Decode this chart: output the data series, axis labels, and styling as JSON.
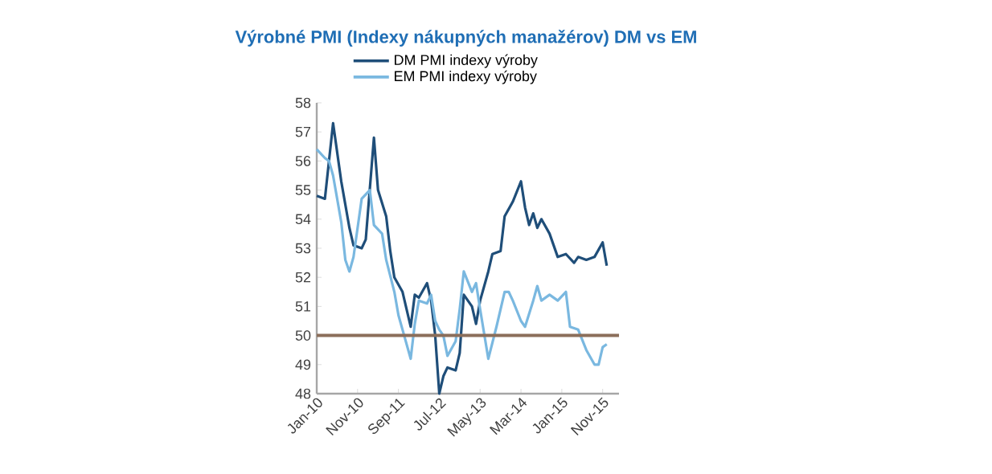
{
  "chart_data": {
    "type": "line",
    "title": "Výrobné PMI (Indexy nákupných manažérov) DM vs EM",
    "series": [
      {
        "name": "DM PMI indexy výroby",
        "color": "#1f4e79",
        "x": [
          "2010-01",
          "2010-03",
          "2010-05",
          "2010-07",
          "2010-09",
          "2010-10",
          "2010-12",
          "2011-01",
          "2011-03",
          "2011-04",
          "2011-06",
          "2011-07",
          "2011-08",
          "2011-10",
          "2011-11",
          "2011-12",
          "2012-01",
          "2012-02",
          "2012-04",
          "2012-05",
          "2012-06",
          "2012-07",
          "2012-08",
          "2012-09",
          "2012-11",
          "2012-12",
          "2013-01",
          "2013-03",
          "2013-04",
          "2013-05",
          "2013-07",
          "2013-08",
          "2013-10",
          "2013-11",
          "2014-01",
          "2014-03",
          "2014-04",
          "2014-05",
          "2014-06",
          "2014-07",
          "2014-08",
          "2014-10",
          "2014-12",
          "2015-02",
          "2015-04",
          "2015-05",
          "2015-07",
          "2015-09",
          "2015-11",
          "2015-12"
        ],
        "values": [
          54.8,
          54.7,
          57.3,
          55.3,
          53.7,
          53.1,
          53.0,
          53.3,
          56.8,
          55.0,
          54.1,
          52.9,
          52.0,
          51.5,
          50.9,
          50.3,
          51.4,
          51.3,
          51.8,
          51.2,
          50.0,
          48.0,
          48.6,
          48.9,
          48.8,
          49.4,
          51.4,
          51.0,
          50.4,
          51.2,
          52.2,
          52.8,
          52.9,
          54.1,
          54.6,
          55.3,
          54.4,
          53.8,
          54.2,
          53.7,
          54.0,
          53.5,
          52.7,
          52.8,
          52.5,
          52.7,
          52.6,
          52.7,
          53.2,
          52.4
        ]
      },
      {
        "name": "EM PMI indexy výroby",
        "color": "#7ab8e0",
        "x": [
          "2010-01",
          "2010-03",
          "2010-04",
          "2010-05",
          "2010-07",
          "2010-08",
          "2010-09",
          "2010-10",
          "2010-12",
          "2011-02",
          "2011-03",
          "2011-05",
          "2011-06",
          "2011-08",
          "2011-09",
          "2011-10",
          "2011-12",
          "2012-01",
          "2012-02",
          "2012-04",
          "2012-05",
          "2012-06",
          "2012-07",
          "2012-08",
          "2012-09",
          "2012-11",
          "2012-12",
          "2013-01",
          "2013-03",
          "2013-04",
          "2013-05",
          "2013-07",
          "2013-09",
          "2013-11",
          "2013-12",
          "2014-01",
          "2014-03",
          "2014-04",
          "2014-06",
          "2014-07",
          "2014-08",
          "2014-10",
          "2014-12",
          "2015-02",
          "2015-03",
          "2015-05",
          "2015-07",
          "2015-09",
          "2015-10",
          "2015-11",
          "2015-12"
        ],
        "values": [
          56.4,
          56.1,
          56.0,
          55.5,
          53.9,
          52.6,
          52.2,
          52.7,
          54.7,
          55.0,
          53.8,
          53.5,
          52.6,
          51.5,
          50.7,
          50.2,
          49.2,
          50.4,
          51.2,
          51.1,
          51.4,
          50.5,
          50.2,
          50.0,
          49.3,
          49.8,
          50.9,
          52.2,
          51.5,
          51.8,
          50.9,
          49.2,
          50.3,
          51.5,
          51.5,
          51.2,
          50.5,
          50.3,
          51.2,
          51.7,
          51.2,
          51.4,
          51.2,
          51.5,
          50.3,
          50.2,
          49.5,
          49.0,
          49.0,
          49.6,
          49.7
        ]
      }
    ],
    "ref_lines": [
      {
        "axis": "y",
        "value": 50,
        "color": "#8b6e5a"
      }
    ],
    "xlim": [
      "2010-01",
      "2016-03"
    ],
    "xticks": [
      {
        "value": "2010-01",
        "label": "Jan-10"
      },
      {
        "value": "2010-11",
        "label": "Nov-10"
      },
      {
        "value": "2011-09",
        "label": "Sep-11"
      },
      {
        "value": "2012-07",
        "label": "Jul-12"
      },
      {
        "value": "2013-05",
        "label": "May-13"
      },
      {
        "value": "2014-03",
        "label": "Mar-14"
      },
      {
        "value": "2015-01",
        "label": "Jan-15"
      },
      {
        "value": "2015-11",
        "label": "Nov-15"
      }
    ],
    "ylim": [
      48,
      58
    ],
    "yticks": [
      48,
      49,
      50,
      51,
      52,
      53,
      54,
      55,
      56,
      57,
      58
    ],
    "legend": "top",
    "grid": false,
    "marker": "none",
    "line_style": "solid"
  }
}
